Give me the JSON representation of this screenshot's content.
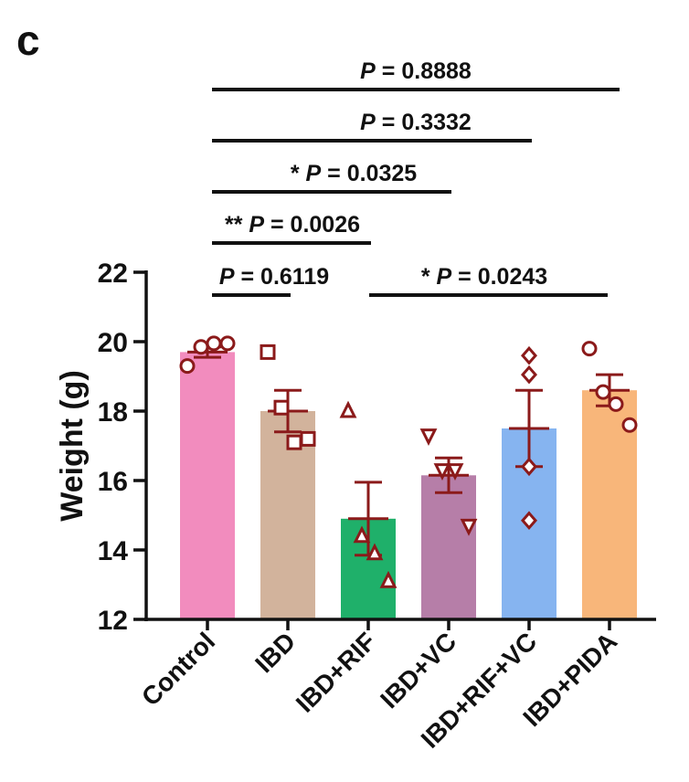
{
  "panel_label": "c",
  "chart_data": {
    "type": "bar",
    "title": "",
    "ylabel": "Weight (g)",
    "xlabel": "",
    "ylim": [
      12,
      22
    ],
    "yticks": [
      12,
      14,
      16,
      18,
      20,
      22
    ],
    "categories": [
      "Control",
      "IBD",
      "IBD+RIF",
      "IBD+VC",
      "IBD+RIF+VC",
      "IBD+PIDA"
    ],
    "means": [
      19.7,
      18.0,
      14.9,
      16.15,
      17.5,
      18.6
    ],
    "sem": [
      0.15,
      0.6,
      1.05,
      0.5,
      1.1,
      0.45
    ],
    "bar_colors": [
      "#f28cbe",
      "#d2b39c",
      "#1fb06a",
      "#b67ea8",
      "#86b4f0",
      "#f8b67a"
    ],
    "error_color": "#8b1a1a",
    "markers": [
      "circle",
      "square",
      "triangle-up",
      "triangle-down",
      "diamond",
      "circle"
    ],
    "points": [
      [
        19.3,
        19.85,
        19.95,
        19.95
      ],
      [
        19.7,
        18.1,
        17.1,
        17.2
      ],
      [
        18.0,
        14.4,
        13.9,
        13.1
      ],
      [
        17.3,
        16.3,
        16.3,
        14.7
      ],
      [
        19.6,
        19.05,
        16.4,
        14.85
      ],
      [
        19.8,
        18.55,
        18.2,
        17.6
      ]
    ],
    "comparisons": [
      {
        "from": 0,
        "to": 5,
        "stars": "",
        "p_label": "P",
        "p_value": "= 0.8888"
      },
      {
        "from": 0,
        "to": 4,
        "stars": "",
        "p_label": "P",
        "p_value": "= 0.3332"
      },
      {
        "from": 0,
        "to": 3,
        "stars": "* ",
        "p_label": "P",
        "p_value": "= 0.0325"
      },
      {
        "from": 0,
        "to": 2,
        "stars": "** ",
        "p_label": "P",
        "p_value": "= 0.0026"
      },
      {
        "from": 0,
        "to": 1,
        "stars": "",
        "p_label": "P",
        "p_value": "= 0.6119"
      },
      {
        "from": 2,
        "to": 5,
        "stars": "* ",
        "p_label": "P",
        "p_value": "= 0.0243"
      }
    ],
    "grid": false,
    "legend": "none"
  }
}
